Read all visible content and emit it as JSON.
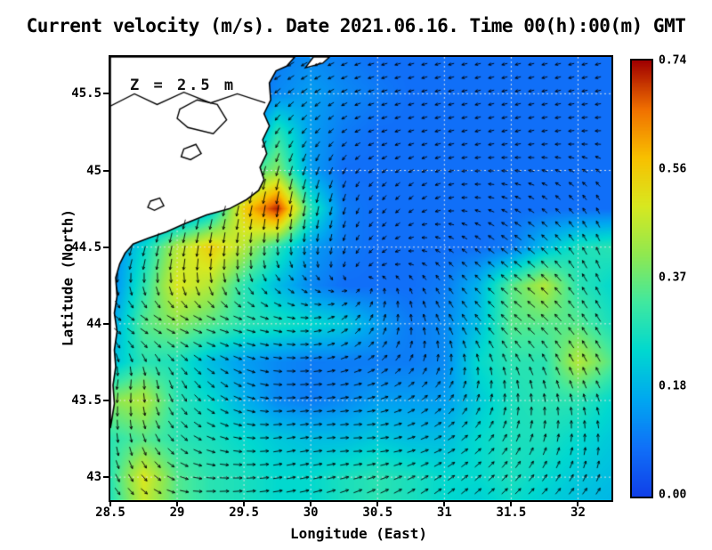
{
  "chart_data": {
    "type": "heatmap",
    "title": "Current velocity (m/s). Date 2021.06.16. Time 00(h):00(m) GMT",
    "annotation": "Z = 2.5 m",
    "xlabel": "Longitude (East)",
    "ylabel": "Latitude (North)",
    "units": "m/s",
    "xlim": [
      28.5,
      32.25
    ],
    "ylim": [
      42.85,
      45.74
    ],
    "colorbar": {
      "min": 0.0,
      "max": 0.74,
      "tick_labels": [
        "0.00",
        "0.18",
        "0.37",
        "0.56",
        "0.74"
      ]
    },
    "grid_lines": {
      "x": [
        29,
        29.5,
        30,
        30.5,
        31,
        31.5,
        32
      ],
      "y": [
        43,
        43.5,
        44,
        44.5,
        45,
        45.5
      ]
    },
    "colormap": [
      "#1040E8",
      "#1070F8",
      "#00A8F0",
      "#00D8D0",
      "#40E8A0",
      "#90E850",
      "#D8E820",
      "#F8C000",
      "#F07000",
      "#A00000"
    ],
    "speed_grid": {
      "lons": [
        28.5,
        28.75,
        29.0,
        29.25,
        29.5,
        29.75,
        30.0,
        30.25,
        30.5,
        30.75,
        31.0,
        31.25,
        31.5,
        31.75,
        32.0,
        32.25
      ],
      "lats": [
        45.75,
        45.5,
        45.25,
        45.0,
        44.75,
        44.5,
        44.25,
        44.0,
        43.75,
        43.5,
        43.25,
        43.0,
        42.75
      ],
      "values": [
        [
          0.05,
          0.05,
          0.05,
          0.05,
          0.05,
          0.1,
          0.12,
          0.1,
          0.08,
          0.08,
          0.08,
          0.08,
          0.08,
          0.08,
          0.08,
          0.08
        ],
        [
          0.05,
          0.05,
          0.05,
          0.05,
          0.05,
          0.12,
          0.15,
          0.12,
          0.1,
          0.08,
          0.08,
          0.08,
          0.08,
          0.08,
          0.08,
          0.08
        ],
        [
          0.05,
          0.05,
          0.05,
          0.05,
          0.05,
          0.3,
          0.15,
          0.1,
          0.08,
          0.08,
          0.08,
          0.08,
          0.08,
          0.08,
          0.08,
          0.08
        ],
        [
          0.05,
          0.05,
          0.05,
          0.05,
          0.3,
          0.4,
          0.15,
          0.08,
          0.08,
          0.08,
          0.08,
          0.08,
          0.08,
          0.08,
          0.08,
          0.08
        ],
        [
          0.05,
          0.05,
          0.08,
          0.2,
          0.55,
          0.72,
          0.3,
          0.1,
          0.08,
          0.08,
          0.08,
          0.08,
          0.08,
          0.08,
          0.08,
          0.08
        ],
        [
          0.1,
          0.25,
          0.45,
          0.55,
          0.45,
          0.3,
          0.15,
          0.1,
          0.08,
          0.08,
          0.08,
          0.08,
          0.1,
          0.2,
          0.28,
          0.3
        ],
        [
          0.1,
          0.3,
          0.5,
          0.45,
          0.3,
          0.2,
          0.12,
          0.08,
          0.08,
          0.08,
          0.1,
          0.18,
          0.35,
          0.45,
          0.3,
          0.25
        ],
        [
          0.15,
          0.35,
          0.4,
          0.35,
          0.3,
          0.28,
          0.25,
          0.22,
          0.15,
          0.1,
          0.12,
          0.2,
          0.35,
          0.35,
          0.35,
          0.28
        ],
        [
          0.2,
          0.3,
          0.28,
          0.2,
          0.15,
          0.12,
          0.1,
          0.1,
          0.1,
          0.1,
          0.12,
          0.25,
          0.3,
          0.3,
          0.45,
          0.35
        ],
        [
          0.4,
          0.45,
          0.3,
          0.25,
          0.18,
          0.12,
          0.1,
          0.12,
          0.15,
          0.15,
          0.15,
          0.22,
          0.28,
          0.3,
          0.3,
          0.25
        ],
        [
          0.3,
          0.35,
          0.3,
          0.28,
          0.25,
          0.22,
          0.2,
          0.2,
          0.22,
          0.2,
          0.2,
          0.25,
          0.28,
          0.28,
          0.25,
          0.22
        ],
        [
          0.3,
          0.5,
          0.35,
          0.3,
          0.28,
          0.25,
          0.25,
          0.28,
          0.3,
          0.28,
          0.25,
          0.25,
          0.28,
          0.25,
          0.22,
          0.2
        ],
        [
          0.28,
          0.45,
          0.35,
          0.3,
          0.28,
          0.25,
          0.25,
          0.28,
          0.3,
          0.28,
          0.25,
          0.22,
          0.25,
          0.22,
          0.2,
          0.18
        ]
      ]
    },
    "vector_field": {
      "lons": [
        28.6,
        29.2,
        29.8,
        30.4,
        31.0,
        31.6,
        32.2
      ],
      "lats": [
        45.6,
        45.2,
        44.8,
        44.4,
        44.0,
        43.6,
        43.2,
        42.9
      ],
      "u": [
        [
          -0.05,
          -0.08,
          -0.15,
          -0.1,
          -0.08,
          -0.08,
          -0.08
        ],
        [
          -0.05,
          -0.1,
          -0.1,
          -0.08,
          -0.08,
          -0.08,
          -0.08
        ],
        [
          -0.05,
          -0.1,
          -0.1,
          -0.05,
          -0.06,
          -0.1,
          -0.05
        ],
        [
          -0.1,
          -0.05,
          0.05,
          -0.05,
          -0.05,
          -0.25,
          -0.1
        ],
        [
          0.25,
          0.3,
          0.25,
          0.1,
          -0.1,
          -0.25,
          -0.15
        ],
        [
          -0.05,
          0.2,
          0.25,
          0.2,
          0.1,
          -0.05,
          -0.1
        ],
        [
          0.05,
          0.25,
          0.25,
          0.25,
          0.2,
          0.1,
          0.0
        ],
        [
          0.15,
          0.3,
          0.3,
          0.25,
          0.2,
          0.15,
          0.1
        ]
      ],
      "v": [
        [
          -0.02,
          -0.05,
          -0.1,
          -0.03,
          -0.02,
          -0.02,
          -0.02
        ],
        [
          -0.05,
          -0.2,
          -0.15,
          -0.03,
          -0.02,
          -0.02,
          0.0
        ],
        [
          -0.1,
          -0.3,
          -0.55,
          -0.08,
          -0.02,
          0.05,
          0.1
        ],
        [
          -0.35,
          -0.45,
          -0.15,
          -0.05,
          0.05,
          0.2,
          0.25
        ],
        [
          -0.15,
          -0.1,
          -0.05,
          0.15,
          0.2,
          0.2,
          0.25
        ],
        [
          -0.35,
          -0.2,
          0.0,
          0.05,
          0.15,
          0.25,
          0.2
        ],
        [
          -0.3,
          -0.1,
          0.05,
          0.0,
          0.1,
          0.2,
          0.2
        ],
        [
          -0.2,
          0.0,
          0.05,
          0.1,
          0.15,
          0.15,
          0.15
        ]
      ]
    },
    "coastline": [
      [
        29.88,
        45.74
      ],
      [
        29.82,
        45.68
      ],
      [
        29.74,
        45.65
      ],
      [
        29.69,
        45.57
      ],
      [
        29.7,
        45.46
      ],
      [
        29.65,
        45.37
      ],
      [
        29.69,
        45.29
      ],
      [
        29.64,
        45.2
      ],
      [
        29.67,
        45.11
      ],
      [
        29.62,
        45.02
      ],
      [
        29.65,
        44.94
      ],
      [
        29.61,
        44.87
      ],
      [
        29.52,
        44.81
      ],
      [
        29.39,
        44.75
      ],
      [
        29.22,
        44.71
      ],
      [
        29.05,
        44.65
      ],
      [
        28.92,
        44.6
      ],
      [
        28.79,
        44.56
      ],
      [
        28.67,
        44.52
      ],
      [
        28.61,
        44.46
      ],
      [
        28.57,
        44.39
      ],
      [
        28.54,
        44.3
      ],
      [
        28.55,
        44.18
      ],
      [
        28.53,
        44.07
      ],
      [
        28.55,
        43.95
      ],
      [
        28.53,
        43.83
      ],
      [
        28.54,
        43.72
      ],
      [
        28.52,
        43.6
      ],
      [
        28.53,
        43.48
      ],
      [
        28.51,
        43.37
      ],
      [
        28.5,
        43.32
      ],
      [
        28.5,
        45.74
      ]
    ],
    "islands": [
      [
        [
          30.02,
          45.74
        ],
        [
          29.96,
          45.67
        ],
        [
          30.09,
          45.7
        ],
        [
          30.14,
          45.74
        ]
      ]
    ],
    "rivers": [
      [
        [
          28.5,
          45.42
        ],
        [
          28.68,
          45.5
        ],
        [
          28.85,
          45.43
        ],
        [
          29.05,
          45.51
        ],
        [
          29.25,
          45.44
        ],
        [
          29.45,
          45.5
        ],
        [
          29.66,
          45.44
        ]
      ]
    ],
    "lakes": [
      [
        [
          29.02,
          45.4
        ],
        [
          29.15,
          45.46
        ],
        [
          29.3,
          45.43
        ],
        [
          29.37,
          45.33
        ],
        [
          29.27,
          45.24
        ],
        [
          29.08,
          45.28
        ],
        [
          29.0,
          45.34
        ]
      ],
      [
        [
          28.8,
          44.8
        ],
        [
          28.87,
          44.82
        ],
        [
          28.9,
          44.77
        ],
        [
          28.83,
          44.74
        ],
        [
          28.78,
          44.76
        ]
      ],
      [
        [
          29.05,
          45.14
        ],
        [
          29.14,
          45.17
        ],
        [
          29.18,
          45.11
        ],
        [
          29.1,
          45.07
        ],
        [
          29.03,
          45.09
        ]
      ]
    ]
  },
  "axes": {
    "x_ticks": [
      "28.5",
      "29",
      "29.5",
      "30",
      "30.5",
      "31",
      "31.5",
      "32"
    ],
    "y_ticks": [
      "43",
      "43.5",
      "44",
      "44.5",
      "45",
      "45.5"
    ]
  }
}
